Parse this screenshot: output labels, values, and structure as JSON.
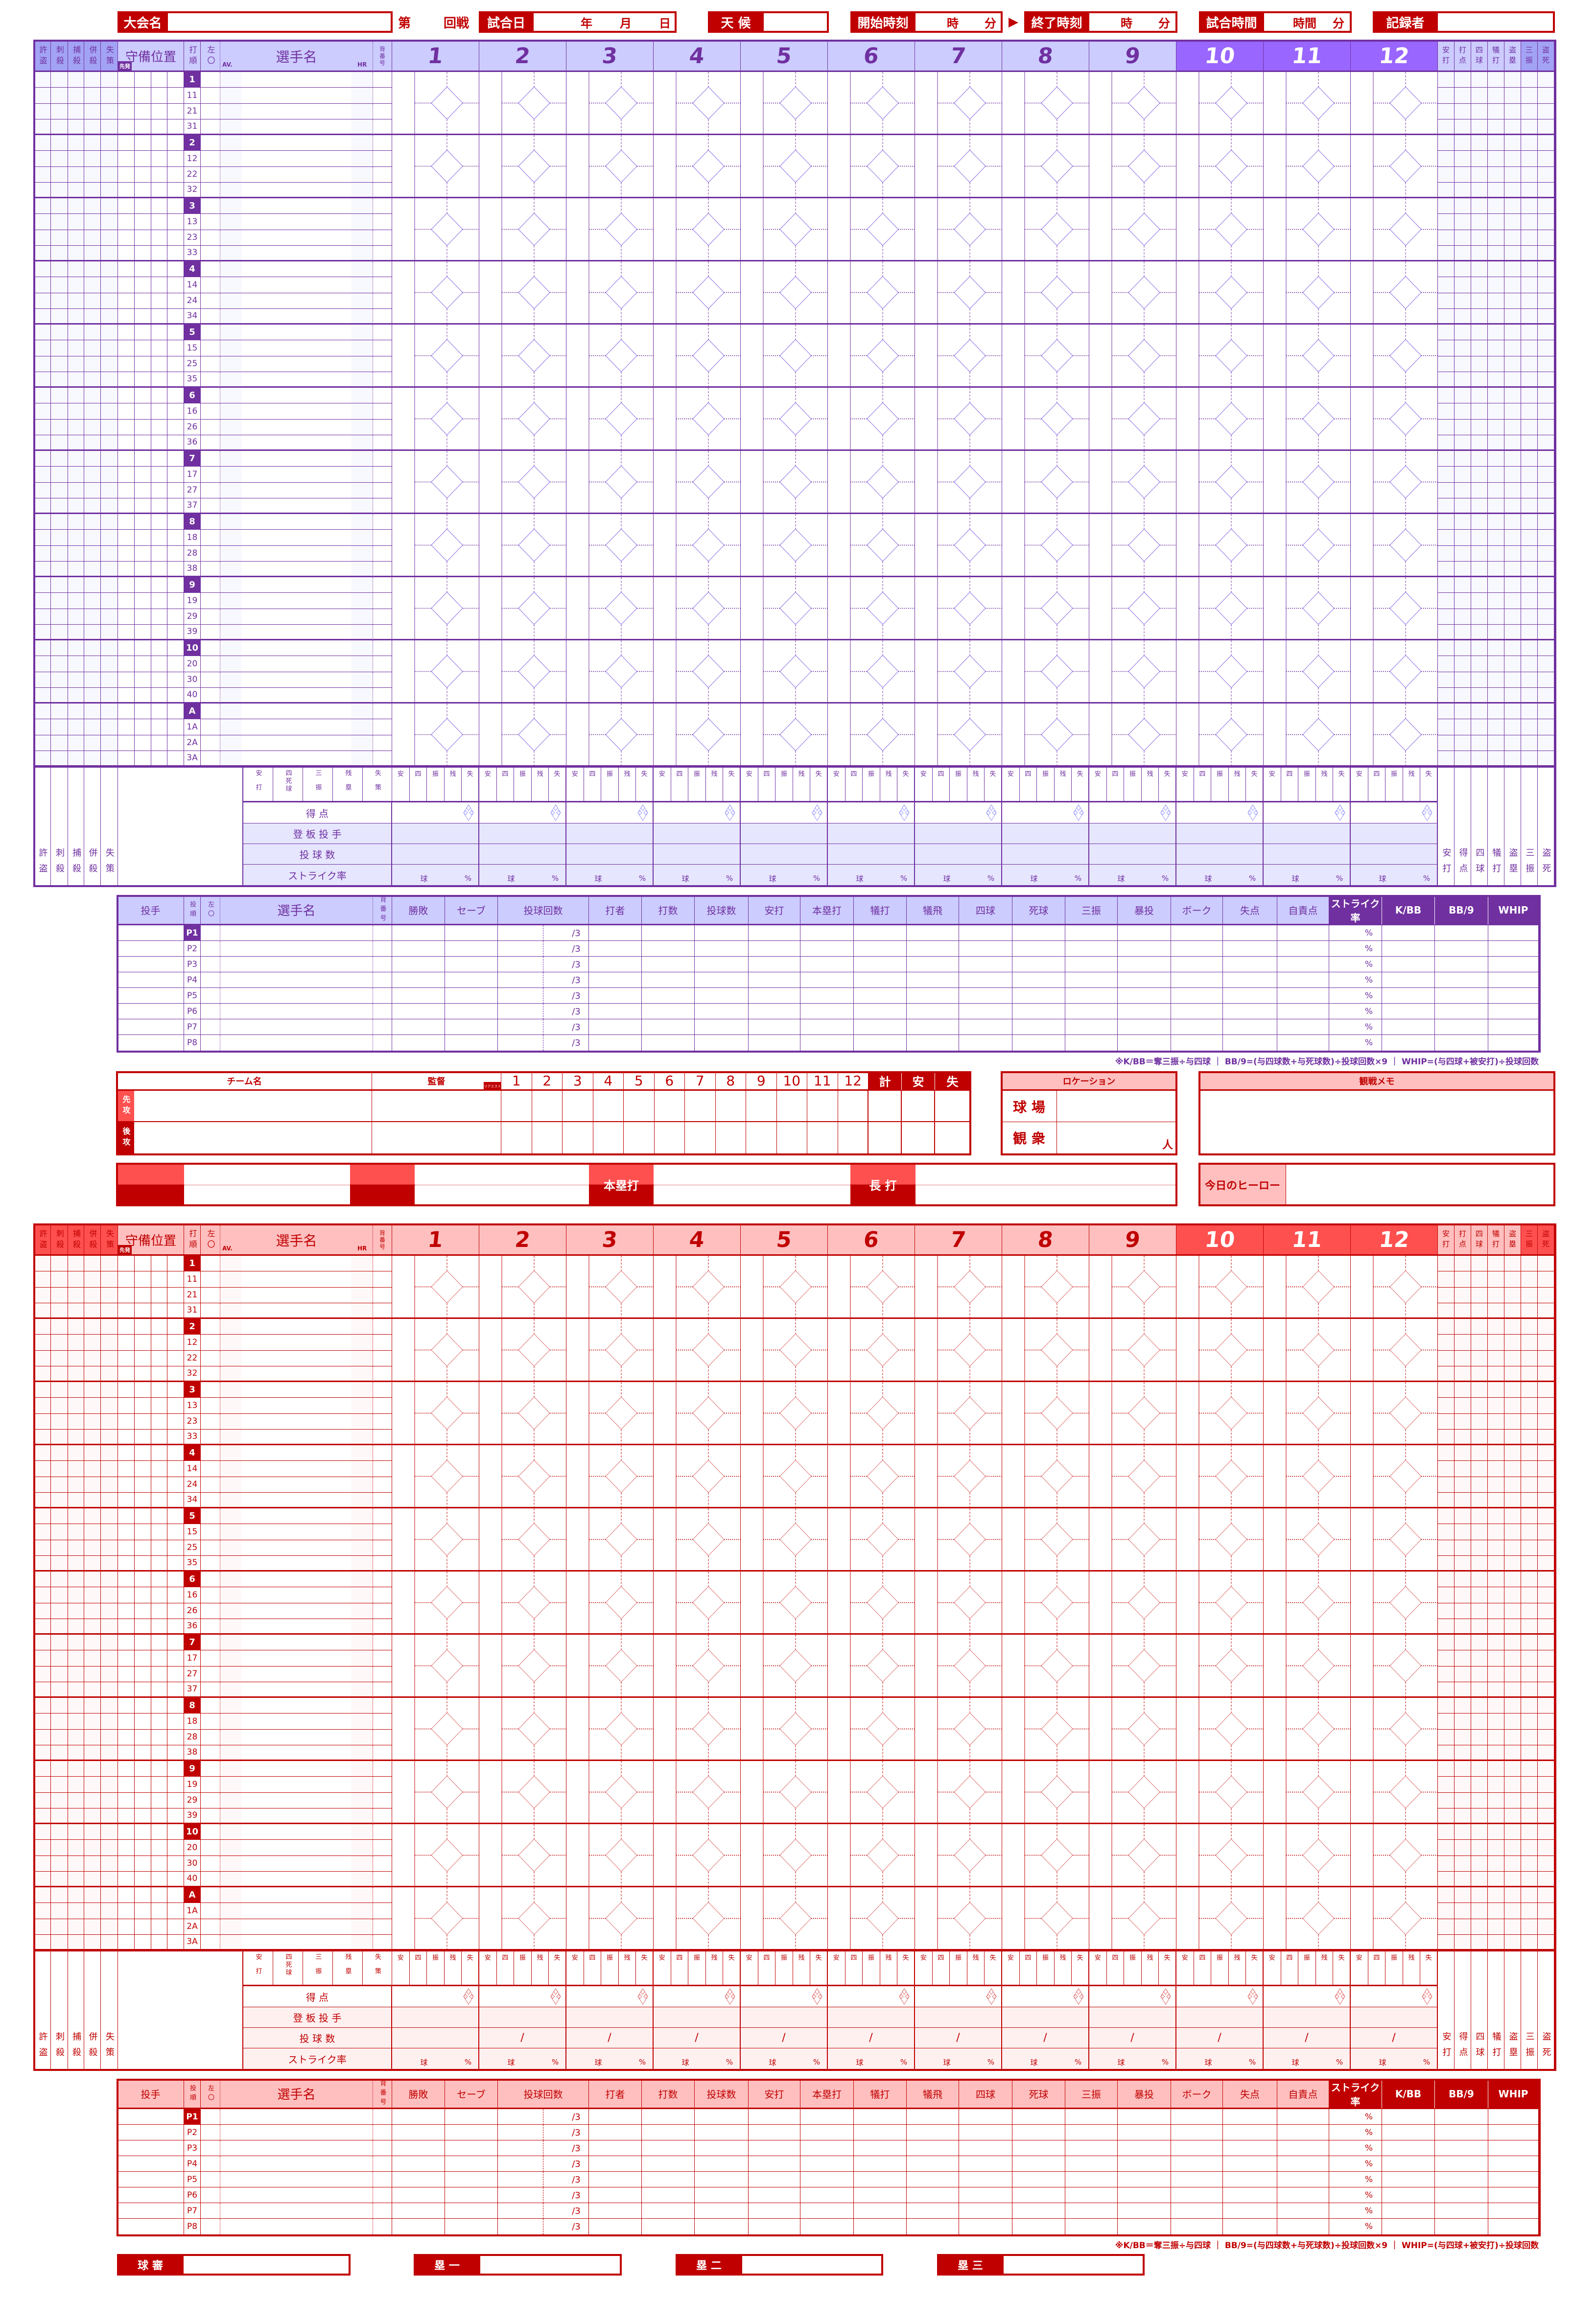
{
  "colors": {
    "purple": {
      "line": "#7030a0",
      "header": "#ccccff",
      "header_dark": "#9966ff",
      "header_texture": "#a3a3f5",
      "shade": "#e6e6ff",
      "faint": "#f8f8ff",
      "accent": "#7030a0",
      "diamond": "#8a6ae6",
      "score_icon": "#9999ff"
    },
    "red": {
      "line": "#c00000",
      "header": "#ffbfbf",
      "header_dark": "#ff5050",
      "header_texture": "#ff5050",
      "shade": "#fff0f0",
      "faint": "#fff8f8",
      "accent": "#c00000",
      "diamond": "#e07070",
      "score_icon": "#e07070"
    },
    "banner": "#c00000"
  },
  "header": {
    "tournament_label": "大会名",
    "round_prefix": "第",
    "round_suffix": "回戦",
    "date_label": "試合日",
    "date_units": [
      "年",
      "月",
      "日"
    ],
    "weather_label": "天 候",
    "start_label": "開始時刻",
    "end_label": "終了時刻",
    "arrow": "▶",
    "time_units": [
      "時",
      "分"
    ],
    "duration_label": "試合時間",
    "duration_units": [
      "時間",
      "分"
    ],
    "recorder_label": "記録者"
  },
  "lineup": {
    "left_cols": [
      "許盗",
      "刺殺",
      "捕殺",
      "併殺",
      "失策"
    ],
    "position_label": "守備位置",
    "starter_badge": "先発",
    "order_label": "打順",
    "lr_label": "左〇",
    "name_label": "選手名",
    "av_label": "AV.",
    "hr_label": "HR",
    "number_label": "背番号",
    "innings": [
      "1",
      "2",
      "3",
      "4",
      "5",
      "6",
      "7",
      "8",
      "9",
      "10",
      "11",
      "12"
    ],
    "right_cols": [
      "安打",
      "打点",
      "四球",
      "犠打",
      "盗塁",
      "三振",
      "盗死"
    ],
    "batting_orders": [
      {
        "slot": "1",
        "subs": [
          "11",
          "21",
          "31"
        ]
      },
      {
        "slot": "2",
        "subs": [
          "12",
          "22",
          "32"
        ]
      },
      {
        "slot": "3",
        "subs": [
          "13",
          "23",
          "33"
        ]
      },
      {
        "slot": "4",
        "subs": [
          "14",
          "24",
          "34"
        ]
      },
      {
        "slot": "5",
        "subs": [
          "15",
          "25",
          "35"
        ]
      },
      {
        "slot": "6",
        "subs": [
          "16",
          "26",
          "36"
        ]
      },
      {
        "slot": "7",
        "subs": [
          "17",
          "27",
          "37"
        ]
      },
      {
        "slot": "8",
        "subs": [
          "18",
          "28",
          "38"
        ]
      },
      {
        "slot": "9",
        "subs": [
          "19",
          "29",
          "39"
        ]
      },
      {
        "slot": "10",
        "subs": [
          "20",
          "30",
          "40"
        ]
      },
      {
        "slot": "A",
        "subs": [
          "1A",
          "2A",
          "3A"
        ]
      }
    ]
  },
  "summary": {
    "stat_labels": [
      "安打",
      "四死球",
      "三振",
      "残塁",
      "失策"
    ],
    "inning_stat_labels": [
      "安",
      "四",
      "振",
      "残",
      "失"
    ],
    "rows": [
      "得 点",
      "登 板 投 手",
      "投 球 数",
      "ストライク率"
    ],
    "pitch_slash": "/",
    "pitch_unit": "球",
    "pct_unit": "%",
    "right_labels": [
      "安打",
      "得点",
      "四球",
      "犠打",
      "盗塁",
      "三振",
      "盗死"
    ]
  },
  "pitching": {
    "headers": [
      "投手",
      "投順",
      "左〇",
      "選手名",
      "背番号",
      "勝敗",
      "セーブ",
      "投球回数",
      "打者",
      "打数",
      "投球数",
      "安打",
      "本塁打",
      "犠打",
      "犠飛",
      "四球",
      "死球",
      "三振",
      "暴投",
      "ボーク",
      "失点",
      "自責点",
      "ストライク率",
      "K/BB",
      "BB/9",
      "WHIP"
    ],
    "orders": [
      "P1",
      "P2",
      "P3",
      "P4",
      "P5",
      "P6",
      "P7",
      "P8"
    ],
    "innings_suffix": "/3",
    "pct_unit": "%",
    "footnote": "※K/BB＝奪三振÷与四球 ｜ BB/9=(与四球数+与死球数)÷投球回数×9 ｜ WHIP=(与四球+被安打)÷投球回数"
  },
  "linescore": {
    "team_name_label": "チーム名",
    "manager_label": "監督",
    "request_badge": "リクエスト",
    "innings": [
      "1",
      "2",
      "3",
      "4",
      "5",
      "6",
      "7",
      "8",
      "9",
      "10",
      "11",
      "12"
    ],
    "totals": [
      "計",
      "安",
      "失"
    ],
    "sides": [
      "先攻",
      "後攻"
    ]
  },
  "location": {
    "title": "ロケーション",
    "stadium_label": "球 場",
    "attendance_label": "観 衆",
    "attendance_unit": "人"
  },
  "memo": {
    "title": "観戦メモ"
  },
  "highlights": {
    "home_run_label": "本塁打",
    "extra_base_label": "長 打",
    "hero_label": "今日のヒーロー"
  },
  "umpires": [
    "球 審",
    "塁 一",
    "塁 二",
    "塁 三"
  ]
}
